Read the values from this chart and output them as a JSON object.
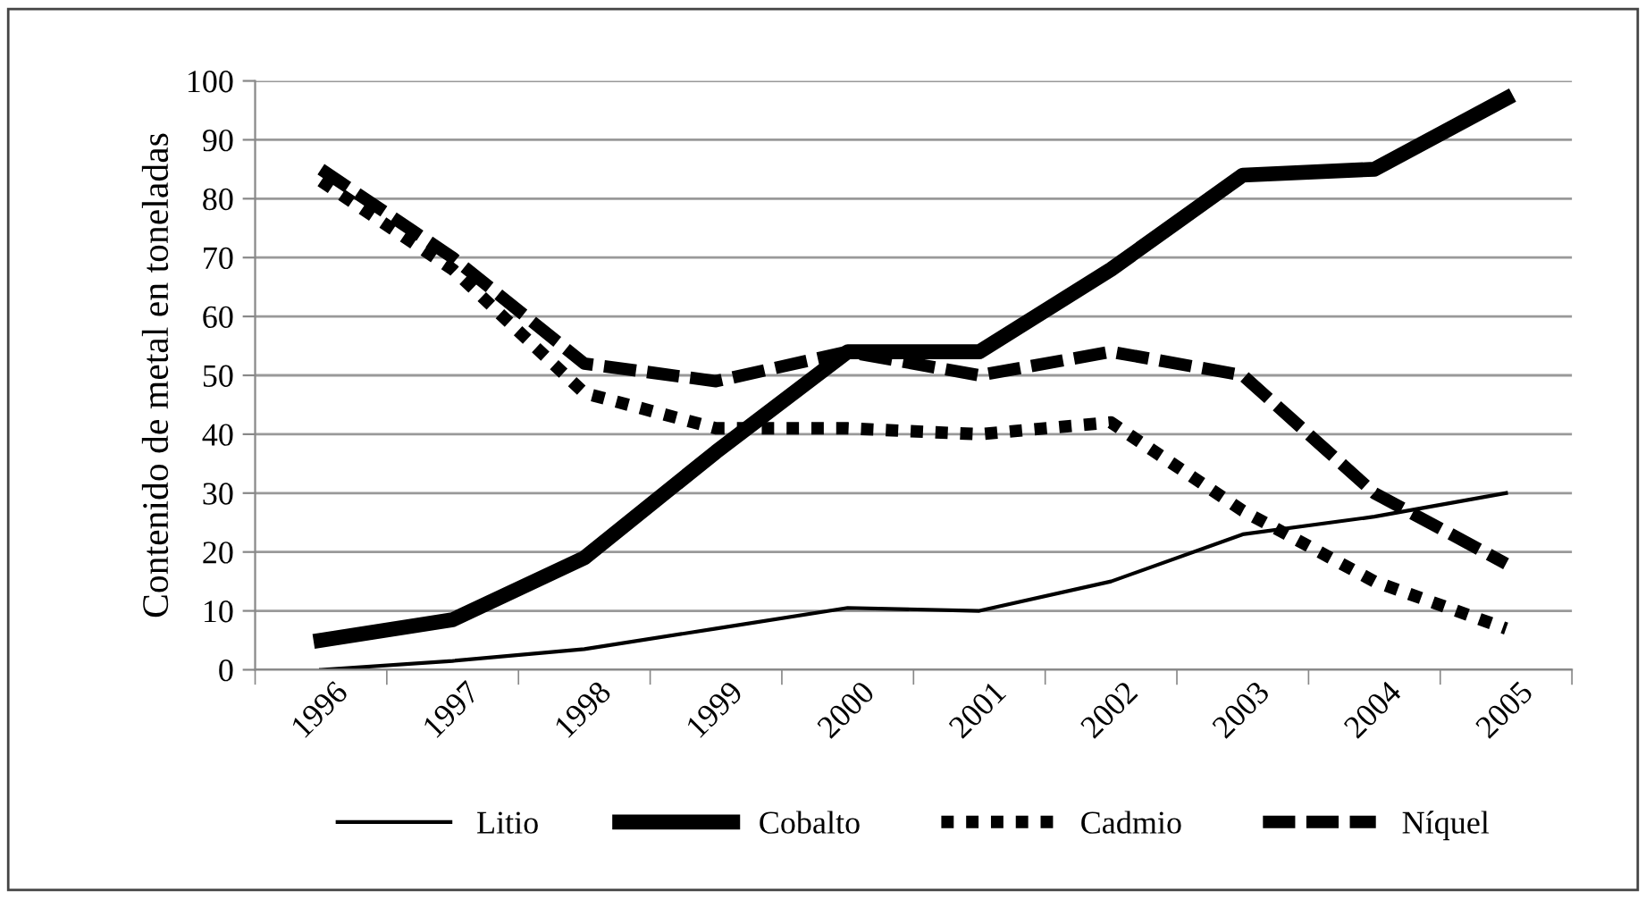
{
  "chart_data": {
    "type": "line",
    "ylabel": "Contenido de metal en toneladas",
    "categories": [
      "1996",
      "1997",
      "1998",
      "1999",
      "2000",
      "2001",
      "2002",
      "2003",
      "2004",
      "2005"
    ],
    "series": [
      {
        "name": "Litio",
        "color": "#000000",
        "line_style": "solid",
        "values": [
          0,
          1.5,
          3.5,
          7,
          10.5,
          10,
          15,
          23,
          26,
          30
        ]
      },
      {
        "name": "Cobalto",
        "color": "#000000",
        "line_style": "solid",
        "values": [
          5,
          8.5,
          19,
          37,
          54,
          54,
          68,
          84,
          85,
          97
        ]
      },
      {
        "name": "Cadmio",
        "color": "#000000",
        "line_style": "dotted",
        "values": [
          83,
          68,
          47,
          41,
          41,
          40,
          42,
          27,
          15,
          7
        ]
      },
      {
        "name": "Níquel",
        "color": "#000000",
        "line_style": "dashed",
        "values": [
          85,
          70,
          52,
          49,
          54,
          50,
          54,
          50,
          30,
          18
        ]
      }
    ],
    "ylim": [
      0,
      100
    ],
    "yticks": [
      0,
      10,
      20,
      30,
      40,
      50,
      60,
      70,
      80,
      90,
      100
    ],
    "grid": "y",
    "legend": "bottom",
    "marker": "none"
  }
}
